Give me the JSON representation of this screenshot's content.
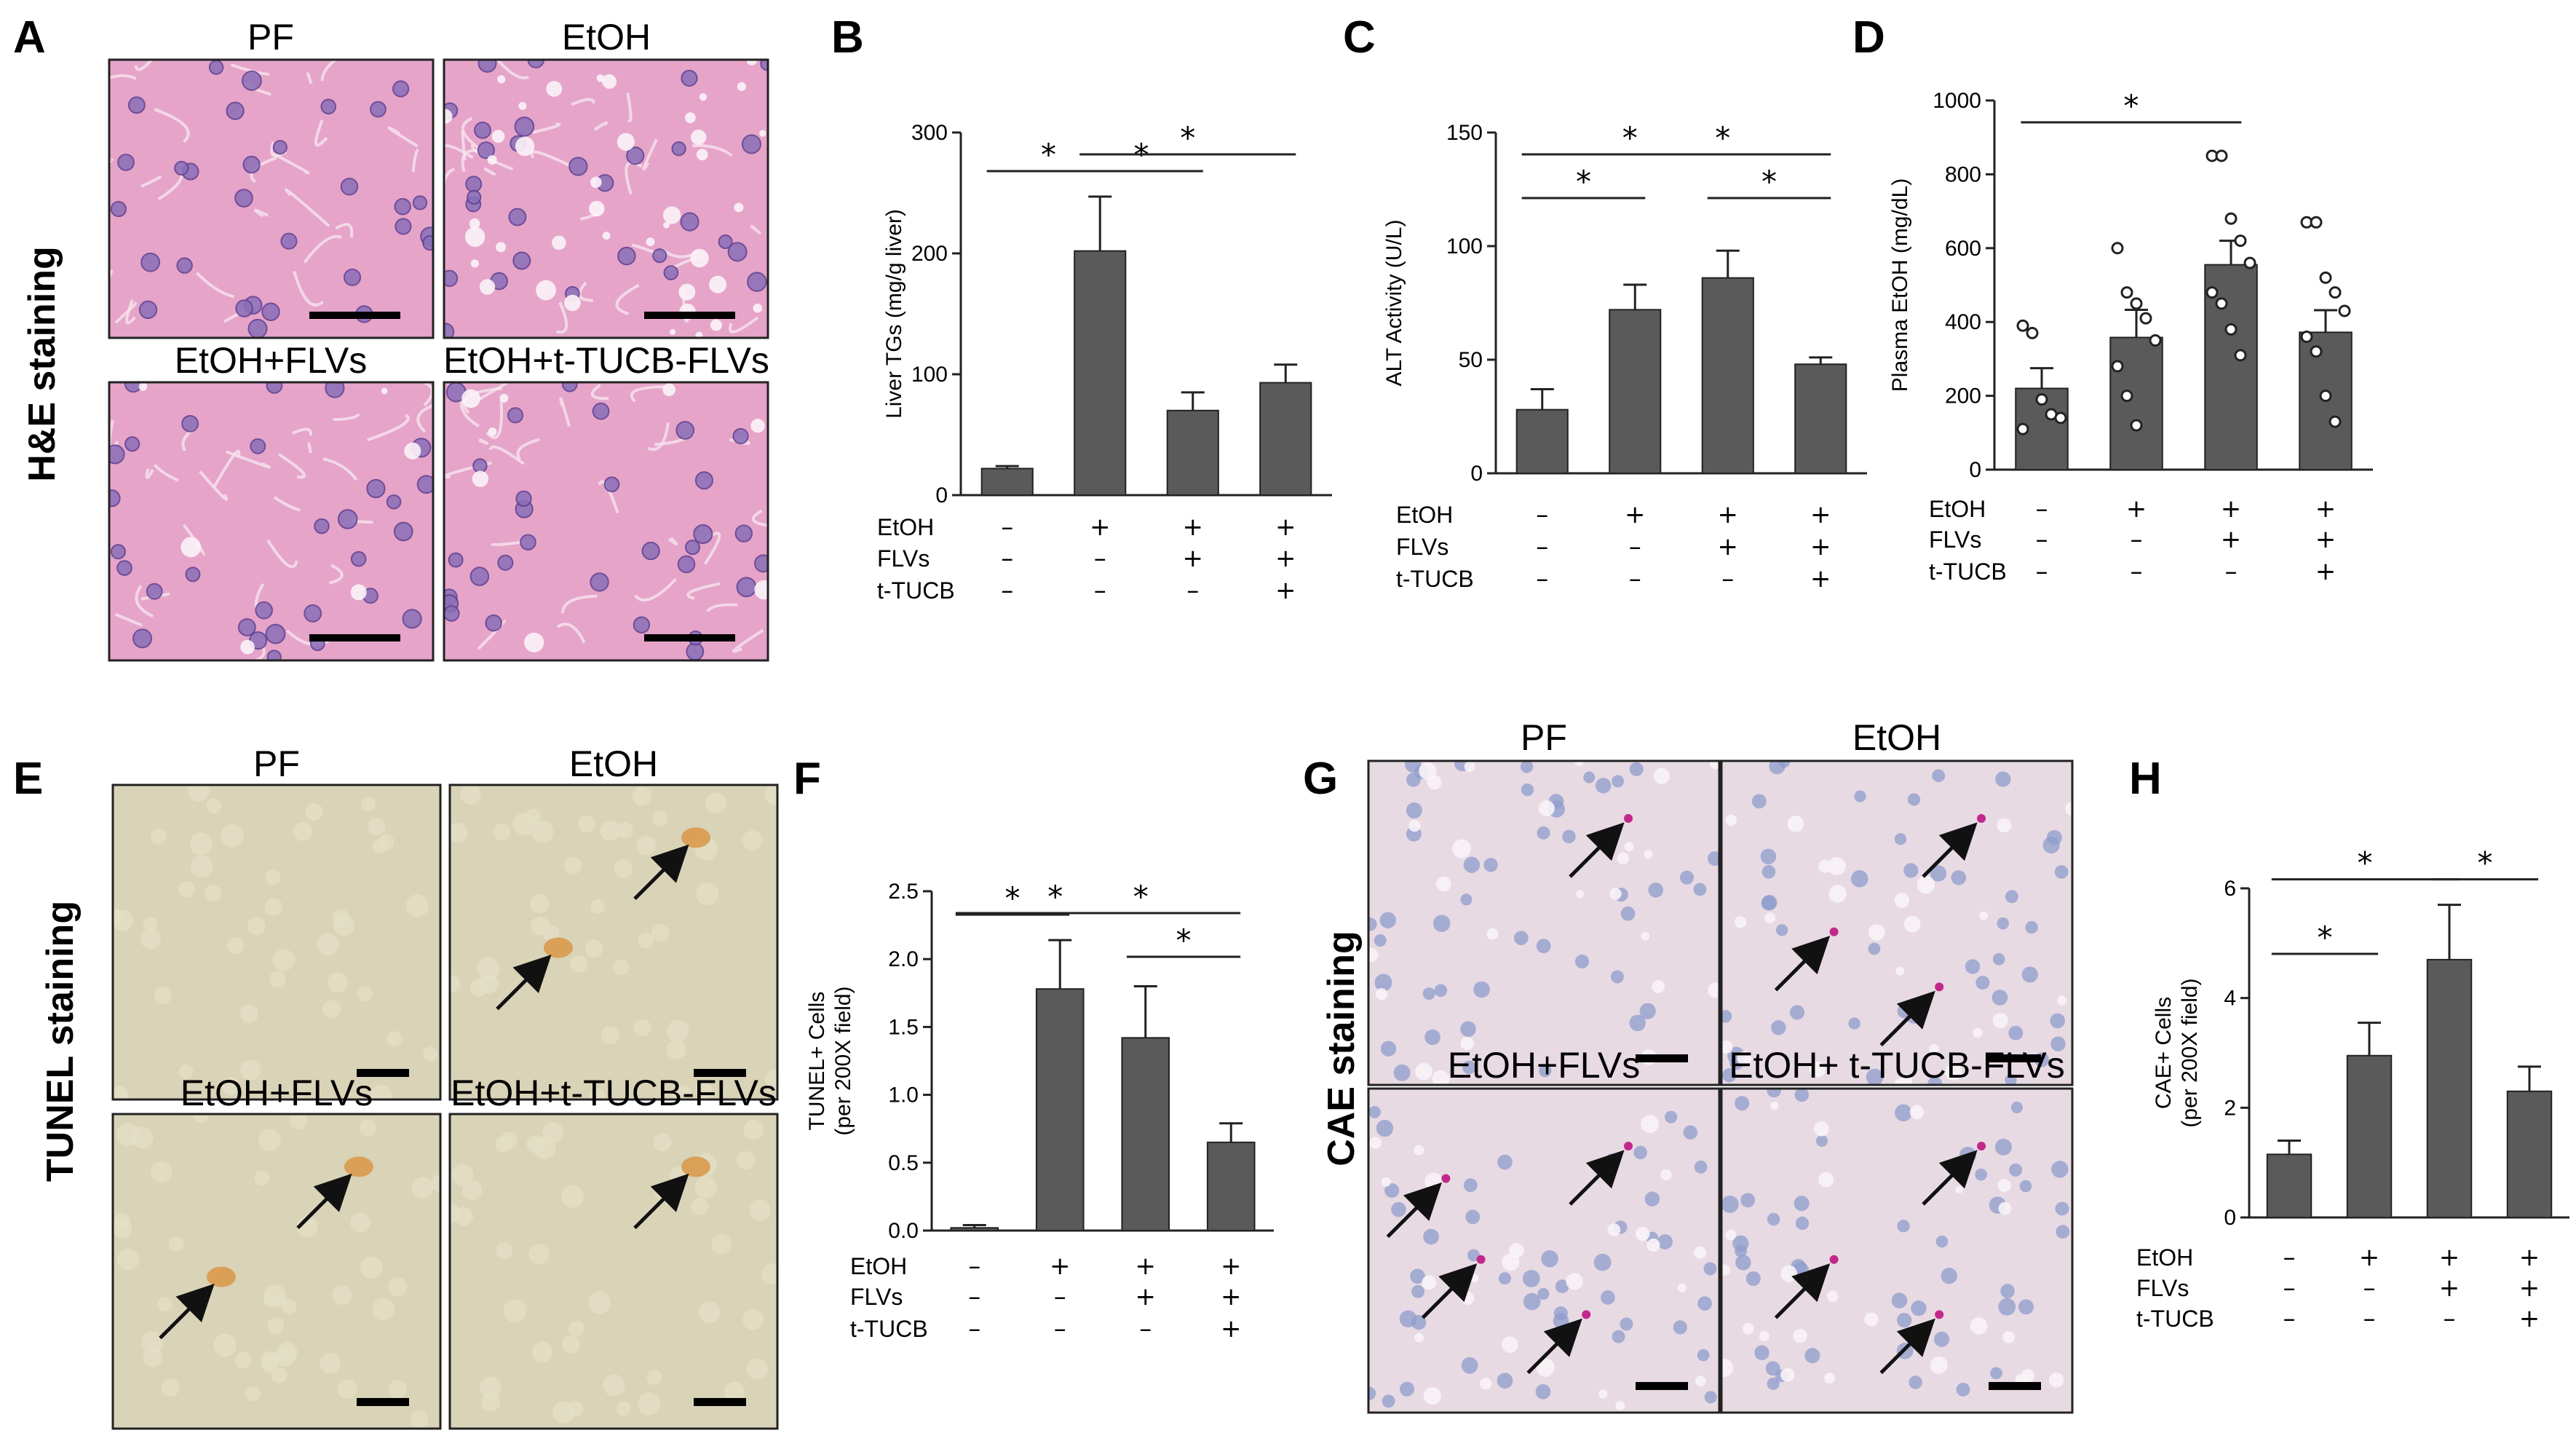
{
  "colors": {
    "bar": "#5a5a5a",
    "he_bg": "#e6a4c9",
    "he_nucleus": "#8a6fb8",
    "tunel_bg": "#d9d3b8",
    "tunel_pos": "#d99a4e",
    "cae_bg": "#e8dae3",
    "cae_nucleus": "#8f9ccc",
    "cae_pos": "#c2278a"
  },
  "panels": {
    "A": {
      "letter": "A",
      "stain": "H&E staining",
      "images": [
        {
          "title": "PF",
          "kind": "he",
          "vacuoles": 0,
          "arrows": 0
        },
        {
          "title": "EtOH",
          "kind": "he",
          "vacuoles": 40,
          "arrows": 0
        },
        {
          "title": "EtOH+FLVs",
          "kind": "he",
          "vacuoles": 6,
          "arrows": 0
        },
        {
          "title": "EtOH+t-TUCB-FLVs",
          "kind": "he",
          "vacuoles": 8,
          "arrows": 0
        }
      ]
    },
    "E": {
      "letter": "E",
      "stain": "TUNEL staining",
      "images": [
        {
          "title": "PF",
          "kind": "tunel",
          "arrows": 0
        },
        {
          "title": "EtOH",
          "kind": "tunel",
          "arrows": 2
        },
        {
          "title": "EtOH+FLVs",
          "kind": "tunel",
          "arrows": 2
        },
        {
          "title": "EtOH+t-TUCB-FLVs",
          "kind": "tunel",
          "arrows": 1
        }
      ]
    },
    "G": {
      "letter": "G",
      "stain": "CAE staining",
      "images": [
        {
          "title": "PF",
          "kind": "cae",
          "arrows": 1
        },
        {
          "title": "EtOH",
          "kind": "cae",
          "arrows": 3
        },
        {
          "title": "EtOH+FLVs",
          "kind": "cae",
          "arrows": 4
        },
        {
          "title": "EtOH+ t-TUCB-FLVs",
          "kind": "cae",
          "arrows": 3
        }
      ]
    }
  },
  "treatment_rows": {
    "labels": [
      "EtOH",
      "FLVs",
      "t-TUCB"
    ],
    "signs": [
      [
        "–",
        "+",
        "+",
        "+"
      ],
      [
        "–",
        "–",
        "+",
        "+"
      ],
      [
        "–",
        "–",
        "–",
        "+"
      ]
    ]
  },
  "chart_data": [
    {
      "id": "B",
      "letter": "B",
      "type": "bar",
      "ylabel": "Liver TGs (mg/g liver)",
      "ylim": [
        0,
        300
      ],
      "yticks": [
        0,
        100,
        200,
        300
      ],
      "values": [
        22,
        202,
        70,
        93
      ],
      "errors": [
        2,
        45,
        15,
        15
      ],
      "significance": [
        {
          "from": 0,
          "to": 1,
          "label": "*"
        },
        {
          "from": 1,
          "to": 2,
          "label": "*"
        },
        {
          "from": 1,
          "to": 3,
          "label": "*"
        }
      ]
    },
    {
      "id": "C",
      "letter": "C",
      "type": "bar",
      "ylabel": "ALT Activity (U/L)",
      "ylim": [
        0,
        150
      ],
      "yticks": [
        0,
        50,
        100,
        150
      ],
      "values": [
        28,
        72,
        86,
        48
      ],
      "errors": [
        9,
        11,
        12,
        3
      ],
      "significance": [
        {
          "from": 0,
          "to": 1,
          "label": "*"
        },
        {
          "from": 0,
          "to": 2,
          "label": "*"
        },
        {
          "from": 1,
          "to": 3,
          "label": "*"
        },
        {
          "from": 2,
          "to": 3,
          "label": "*"
        }
      ]
    },
    {
      "id": "D",
      "letter": "D",
      "type": "bar",
      "ylabel": "Plasma EtOH (mg/dL)",
      "ylim": [
        0,
        1000
      ],
      "yticks": [
        0,
        200,
        400,
        600,
        800,
        1000
      ],
      "values": [
        220,
        358,
        555,
        372
      ],
      "errors": [
        55,
        75,
        65,
        60
      ],
      "points": [
        [
          390,
          370,
          190,
          150,
          140,
          110
        ],
        [
          600,
          480,
          450,
          410,
          350,
          280,
          200,
          120
        ],
        [
          850,
          850,
          680,
          620,
          560,
          480,
          450,
          380,
          310
        ],
        [
          670,
          670,
          520,
          480,
          430,
          360,
          320,
          200,
          130
        ]
      ],
      "significance": [
        {
          "from": 0,
          "to": 2,
          "label": "*"
        }
      ]
    },
    {
      "id": "F",
      "letter": "F",
      "type": "bar",
      "ylabel": "TUNEL+ Cells",
      "ylabel2": "(per 200X field)",
      "ylim": [
        0,
        2.5
      ],
      "yticks": [
        "0.0",
        "0.5",
        "1.0",
        "1.5",
        "2.0",
        "2.5"
      ],
      "values": [
        0.02,
        1.78,
        1.42,
        0.65
      ],
      "errors": [
        0.02,
        0.36,
        0.38,
        0.14
      ],
      "significance": [
        {
          "from": 0,
          "to": 1,
          "label": "*"
        },
        {
          "from": 0,
          "to": 2,
          "label": "*"
        },
        {
          "from": 1,
          "to": 3,
          "label": "*"
        },
        {
          "from": 2,
          "to": 3,
          "label": "*"
        }
      ]
    },
    {
      "id": "H",
      "letter": "H",
      "type": "bar",
      "ylabel": "CAE+ Cells",
      "ylabel2": "(per 200X field)",
      "ylim": [
        0,
        6
      ],
      "yticks": [
        0,
        2,
        4,
        6
      ],
      "values": [
        1.15,
        2.95,
        4.7,
        2.3
      ],
      "errors": [
        0.25,
        0.6,
        1.0,
        0.45
      ],
      "significance": [
        {
          "from": 0,
          "to": 1,
          "label": "*"
        },
        {
          "from": 0,
          "to": 2,
          "label": "*"
        },
        {
          "from": 2,
          "to": 3,
          "label": "*"
        }
      ]
    }
  ]
}
